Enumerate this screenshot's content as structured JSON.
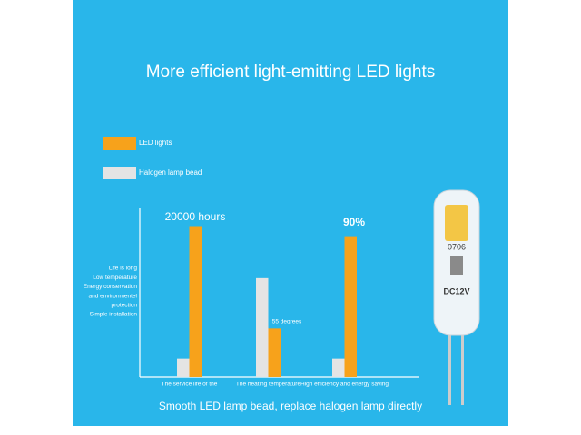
{
  "chart_data": {
    "type": "bar",
    "title": "More efficient light-emitting LED lights",
    "subtitle": "Smooth LED lamp bead, replace halogen lamp directly",
    "categories": [
      "The service life of the",
      "The heating temperature",
      "High efficiency and energy saving"
    ],
    "series": [
      {
        "name": "Halogen lamp bead",
        "color": "#e4e4e4",
        "values": [
          11,
          59,
          11
        ]
      },
      {
        "name": "LED lights",
        "color": "#f7a21b",
        "values": [
          90,
          29,
          84
        ]
      }
    ],
    "ylim": [
      0,
      100
    ],
    "annotations": [
      "20000 hours",
      "55 degrees",
      "90%"
    ],
    "side_notes": [
      "Life is long",
      "Low temperature",
      "Energy conservation",
      "and environmentel",
      "protection",
      "Simple installation"
    ]
  },
  "product_markings": [
    "0706",
    "DC12V"
  ]
}
